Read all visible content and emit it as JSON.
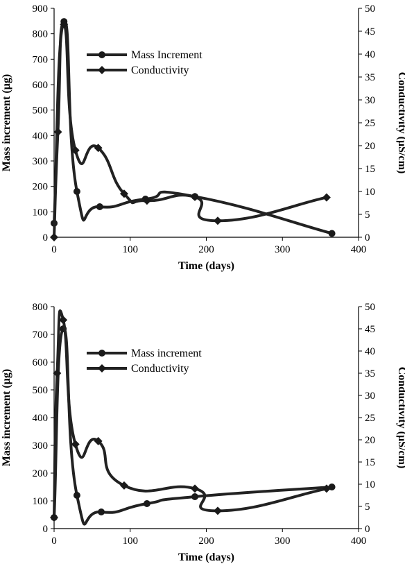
{
  "chart_data": [
    {
      "type": "line",
      "xlabel": "Time (days)",
      "ylabel_left": "Mass increment (µg)",
      "ylabel_right": "Conductivity (µS/cm)",
      "xlim": [
        0,
        400
      ],
      "xticks": [
        0,
        100,
        200,
        300,
        400
      ],
      "ylim_left": [
        0,
        900
      ],
      "yticks_left": [
        0,
        100,
        200,
        300,
        400,
        500,
        600,
        700,
        800,
        900
      ],
      "ylim_right": [
        0,
        50
      ],
      "yticks_right": [
        0,
        5,
        10,
        15,
        20,
        25,
        30,
        35,
        40,
        45,
        50
      ],
      "grid": false,
      "legend_position": "upper-center",
      "series": [
        {
          "name": "Mass Increment",
          "axis": "left",
          "marker": "circle",
          "x": [
            0,
            13,
            30,
            60,
            120,
            185,
            365
          ],
          "y": [
            55,
            848,
            180,
            120,
            150,
            160,
            15
          ]
        },
        {
          "name": "Conductivity",
          "axis": "right",
          "marker": "diamond",
          "x": [
            0,
            5,
            13,
            28,
            58,
            92,
            122,
            185,
            215,
            358
          ],
          "y": [
            0,
            23,
            46.5,
            19,
            19.5,
            9.5,
            8,
            8.8,
            3.6,
            8.7
          ]
        }
      ]
    },
    {
      "type": "line",
      "xlabel": "Time (days)",
      "ylabel_left": "Mass increment (µg)",
      "ylabel_right": "Conductivity (µS/cm)",
      "xlim": [
        0,
        400
      ],
      "xticks": [
        0,
        100,
        200,
        300,
        400
      ],
      "ylim_left": [
        0,
        800
      ],
      "yticks_left": [
        0,
        100,
        200,
        300,
        400,
        500,
        600,
        700,
        800
      ],
      "ylim_right": [
        0,
        50
      ],
      "yticks_right": [
        0,
        5,
        10,
        15,
        20,
        25,
        30,
        35,
        40,
        45,
        50
      ],
      "grid": false,
      "legend_position": "upper-center",
      "series": [
        {
          "name": "Mass increment",
          "axis": "left",
          "marker": "circle",
          "x": [
            0,
            12,
            30,
            62,
            122,
            185,
            365
          ],
          "y": [
            40,
            720,
            120,
            60,
            90,
            115,
            150
          ]
        },
        {
          "name": "Conductivity",
          "axis": "right",
          "marker": "diamond",
          "x": [
            0,
            4,
            12,
            28,
            58,
            92,
            185,
            215,
            358
          ],
          "y": [
            2.5,
            35,
            47,
            19,
            19.7,
            9.7,
            9,
            4,
            9
          ]
        }
      ]
    }
  ]
}
